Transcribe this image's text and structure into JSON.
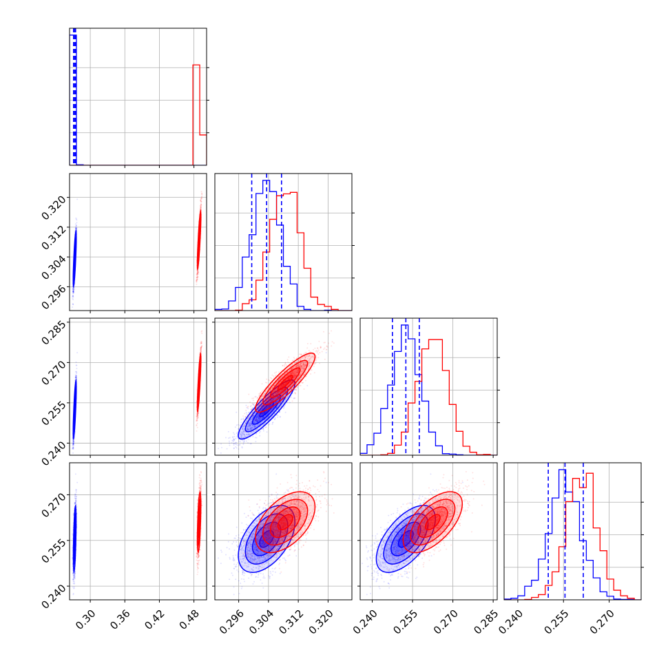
{
  "chart_data": {
    "type": "corner",
    "grid": true,
    "parameters": [
      {
        "range": [
          0.264,
          0.502
        ],
        "ticks": [
          "0.30",
          "0.36",
          "0.42",
          "0.48"
        ],
        "tick_values": [
          0.3,
          0.36,
          0.42,
          0.48
        ]
      },
      {
        "range": [
          0.2896,
          0.3264
        ],
        "ticks": [
          "0.296",
          "0.304",
          "0.312",
          "0.320"
        ],
        "tick_values": [
          0.296,
          0.304,
          0.312,
          0.32
        ]
      },
      {
        "range": [
          0.2355,
          0.2865
        ],
        "ticks": [
          "0.240",
          "0.255",
          "0.270",
          "0.285"
        ],
        "tick_values": [
          0.24,
          0.255,
          0.27,
          0.285
        ]
      },
      {
        "range": [
          0.2355,
          0.2805
        ],
        "ticks": [
          "0.240",
          "0.255",
          "0.270"
        ],
        "tick_values": [
          0.24,
          0.255,
          0.27
        ]
      }
    ],
    "series": [
      {
        "color": "#0000ff",
        "means": [
          0.273,
          0.3035,
          0.2525,
          0.2555
        ],
        "sds": [
          0.0012,
          0.0038,
          0.0055,
          0.0055
        ],
        "corr": [
          [
            1,
            0.9,
            0.9,
            0.55
          ],
          [
            0.9,
            1,
            0.88,
            0.5
          ],
          [
            0.9,
            0.88,
            1,
            0.6
          ],
          [
            0.55,
            0.5,
            0.6,
            1
          ]
        ],
        "quantiles": [
          [
            0.271,
            0.2725,
            0.2745
          ],
          [
            0.2995,
            0.3035,
            0.3075
          ],
          [
            0.2475,
            0.2525,
            0.2575
          ],
          [
            0.25,
            0.2555,
            0.2615
          ]
        ]
      },
      {
        "color": "#ff0000",
        "means": [
          0.489,
          0.3085,
          0.2625,
          0.261
        ],
        "sds": [
          0.0015,
          0.004,
          0.0055,
          0.005
        ],
        "corr": [
          [
            1,
            0.9,
            0.9,
            0.55
          ],
          [
            0.9,
            1,
            0.88,
            0.5
          ],
          [
            0.9,
            0.88,
            1,
            0.6
          ],
          [
            0.55,
            0.5,
            0.6,
            1
          ]
        ]
      }
    ],
    "quantile_line_color": "#0000ff"
  }
}
